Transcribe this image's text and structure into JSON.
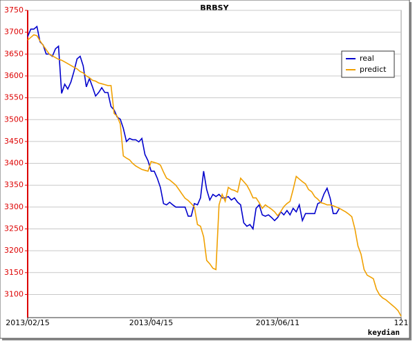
{
  "chart_data": {
    "type": "line",
    "title": "BRBSY",
    "xlabel": "keydian",
    "x": [
      0,
      1,
      2,
      3,
      4,
      5,
      6,
      7,
      8,
      9,
      10,
      11,
      12,
      13,
      14,
      15,
      16,
      17,
      18,
      19,
      20,
      21,
      22,
      23,
      24,
      25,
      26,
      27,
      28,
      29,
      30,
      31,
      32,
      33,
      34,
      35,
      36,
      37,
      38,
      39,
      40,
      41,
      42,
      43,
      44,
      45,
      46,
      47,
      48,
      49,
      50,
      51,
      52,
      53,
      54,
      55,
      56,
      57,
      58,
      59,
      60,
      61,
      62,
      63,
      64,
      65,
      66,
      67,
      68,
      69,
      70,
      71,
      72,
      73,
      74,
      75,
      76,
      77,
      78,
      79,
      80,
      81,
      82,
      83,
      84,
      85,
      86,
      87,
      88,
      89,
      90,
      91,
      92,
      93,
      94,
      95,
      96,
      97,
      98,
      99,
      100,
      101,
      102,
      103,
      104,
      105,
      106,
      107,
      108,
      109,
      110,
      111,
      112,
      113,
      114,
      115,
      116,
      117,
      118,
      119,
      120,
      121
    ],
    "series": [
      {
        "name": "real",
        "color": "#0000cc",
        "values": [
          3690,
          3707,
          3707,
          3713,
          3678,
          3671,
          3650,
          3650,
          3645,
          3662,
          3668,
          3560,
          3581,
          3570,
          3586,
          3610,
          3639,
          3645,
          3623,
          3575,
          3594,
          3575,
          3554,
          3562,
          3573,
          3562,
          3562,
          3530,
          3522,
          3506,
          3501,
          3480,
          3450,
          3457,
          3454,
          3454,
          3449,
          3457,
          3420,
          3406,
          3382,
          3382,
          3366,
          3345,
          3308,
          3305,
          3311,
          3305,
          3300,
          3300,
          3300,
          3300,
          3279,
          3279,
          3308,
          3305,
          3321,
          3382,
          3340,
          3316,
          3329,
          3324,
          3329,
          3321,
          3321,
          3324,
          3316,
          3321,
          3311,
          3305,
          3264,
          3256,
          3260,
          3250,
          3297,
          3305,
          3282,
          3279,
          3282,
          3276,
          3269,
          3276,
          3289,
          3282,
          3292,
          3282,
          3297,
          3289,
          3305,
          3269,
          3285,
          3285,
          3285,
          3285,
          3308,
          3311,
          3330,
          3343,
          3320,
          3285,
          3285,
          3297,
          null,
          null,
          null,
          null,
          null,
          null,
          null,
          null,
          null,
          null,
          null,
          null,
          null,
          null,
          null,
          null,
          null,
          null,
          null,
          null
        ]
      },
      {
        "name": "predict",
        "color": "#f0a000",
        "values": [
          3682,
          3688,
          3694,
          3692,
          3680,
          3670,
          3660,
          3650,
          3646,
          3642,
          3638,
          3636,
          3632,
          3628,
          3624,
          3620,
          3616,
          3610,
          3607,
          3600,
          3596,
          3590,
          3588,
          3584,
          3582,
          3580,
          3578,
          3578,
          3514,
          3508,
          3490,
          3417,
          3412,
          3408,
          3400,
          3394,
          3390,
          3386,
          3384,
          3382,
          3404,
          3402,
          3400,
          3396,
          3380,
          3366,
          3362,
          3356,
          3350,
          3340,
          3330,
          3320,
          3315,
          3308,
          3300,
          3260,
          3256,
          3232,
          3178,
          3170,
          3160,
          3157,
          3305,
          3329,
          3313,
          3345,
          3340,
          3338,
          3334,
          3366,
          3358,
          3350,
          3337,
          3321,
          3321,
          3310,
          3297,
          3305,
          3300,
          3295,
          3289,
          3280,
          3290,
          3301,
          3308,
          3313,
          3340,
          3370,
          3364,
          3358,
          3353,
          3340,
          3335,
          3324,
          3318,
          3310,
          3308,
          3305,
          3305,
          3303,
          3300,
          3297,
          3293,
          3289,
          3284,
          3278,
          3250,
          3211,
          3192,
          3157,
          3144,
          3140,
          3136,
          3112,
          3099,
          3092,
          3088,
          3082,
          3076,
          3070,
          3063,
          3050
        ]
      }
    ],
    "xlim": [
      0,
      121
    ],
    "xticks": [
      {
        "value": 0,
        "label": "2013/02/15"
      },
      {
        "value": 40,
        "label": "2013/04/15"
      },
      {
        "value": 81,
        "label": "2013/06/11"
      },
      121
    ],
    "ylim": [
      3047,
      3750
    ],
    "yticks": [
      3100,
      3150,
      3200,
      3250,
      3300,
      3350,
      3400,
      3450,
      3500,
      3550,
      3600,
      3650,
      3700,
      3750
    ],
    "grid": true,
    "legend": "upper right"
  }
}
